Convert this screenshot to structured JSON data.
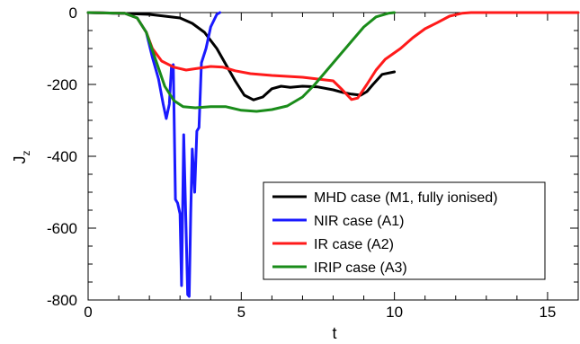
{
  "chart_data": {
    "type": "line",
    "xlabel": "t",
    "ylabel": "J",
    "ylabel_sub": "z",
    "xlim": [
      0,
      16
    ],
    "ylim": [
      -800,
      0
    ],
    "x_ticks": [
      0,
      5,
      10,
      15
    ],
    "y_ticks": [
      0,
      -200,
      -400,
      -600,
      -800
    ],
    "grid": false,
    "legend_position": "bottom-right",
    "series": [
      {
        "name": "MHD case (M1, fully ionised)",
        "color": "#000000",
        "points": [
          [
            0,
            0
          ],
          [
            1,
            -2
          ],
          [
            2,
            -5
          ],
          [
            2.5,
            -10
          ],
          [
            3,
            -15
          ],
          [
            3.4,
            -30
          ],
          [
            3.8,
            -55
          ],
          [
            4.2,
            -100
          ],
          [
            4.5,
            -145
          ],
          [
            4.8,
            -190
          ],
          [
            5.1,
            -230
          ],
          [
            5.4,
            -243
          ],
          [
            5.7,
            -235
          ],
          [
            6,
            -212
          ],
          [
            6.3,
            -205
          ],
          [
            6.6,
            -208
          ],
          [
            7,
            -205
          ],
          [
            7.5,
            -207
          ],
          [
            8,
            -215
          ],
          [
            8.3,
            -222
          ],
          [
            8.6,
            -227
          ],
          [
            8.9,
            -230
          ],
          [
            9.1,
            -220
          ],
          [
            9.3,
            -200
          ],
          [
            9.6,
            -172
          ],
          [
            10,
            -165
          ]
        ]
      },
      {
        "name": "NIR case (A1)",
        "color": "#1a1aff",
        "points": [
          [
            0,
            0
          ],
          [
            1.2,
            -2
          ],
          [
            1.6,
            -15
          ],
          [
            1.9,
            -55
          ],
          [
            2.1,
            -125
          ],
          [
            2.3,
            -185
          ],
          [
            2.45,
            -255
          ],
          [
            2.55,
            -295
          ],
          [
            2.65,
            -255
          ],
          [
            2.72,
            -150
          ],
          [
            2.78,
            -145
          ],
          [
            2.85,
            -520
          ],
          [
            2.92,
            -530
          ],
          [
            3.0,
            -560
          ],
          [
            3.05,
            -760
          ],
          [
            3.12,
            -340
          ],
          [
            3.2,
            -610
          ],
          [
            3.25,
            -785
          ],
          [
            3.3,
            -790
          ],
          [
            3.35,
            -560
          ],
          [
            3.4,
            -380
          ],
          [
            3.48,
            -500
          ],
          [
            3.55,
            -330
          ],
          [
            3.62,
            -320
          ],
          [
            3.7,
            -140
          ],
          [
            3.85,
            -100
          ],
          [
            4.0,
            -40
          ],
          [
            4.2,
            -5
          ],
          [
            4.3,
            0
          ]
        ]
      },
      {
        "name": "IR case (A2)",
        "color": "#ff1a1a",
        "points": [
          [
            0,
            0
          ],
          [
            1.2,
            -2
          ],
          [
            1.6,
            -15
          ],
          [
            1.9,
            -55
          ],
          [
            2.1,
            -100
          ],
          [
            2.4,
            -135
          ],
          [
            2.8,
            -152
          ],
          [
            3.2,
            -160
          ],
          [
            3.6,
            -155
          ],
          [
            4,
            -150
          ],
          [
            4.4,
            -152
          ],
          [
            4.8,
            -162
          ],
          [
            5.3,
            -170
          ],
          [
            6,
            -175
          ],
          [
            7,
            -180
          ],
          [
            7.5,
            -185
          ],
          [
            8,
            -190
          ],
          [
            8.3,
            -215
          ],
          [
            8.6,
            -242
          ],
          [
            8.8,
            -238
          ],
          [
            9.1,
            -200
          ],
          [
            9.4,
            -160
          ],
          [
            9.7,
            -130
          ],
          [
            10.2,
            -100
          ],
          [
            10.6,
            -70
          ],
          [
            11,
            -45
          ],
          [
            11.4,
            -28
          ],
          [
            11.8,
            -10
          ],
          [
            12.2,
            -2
          ],
          [
            12.5,
            0
          ],
          [
            16,
            0
          ]
        ]
      },
      {
        "name": "IRIP case (A3)",
        "color": "#1a8c1a",
        "points": [
          [
            0,
            0
          ],
          [
            1.2,
            -2
          ],
          [
            1.6,
            -15
          ],
          [
            1.9,
            -55
          ],
          [
            2.2,
            -130
          ],
          [
            2.5,
            -205
          ],
          [
            2.8,
            -245
          ],
          [
            3.1,
            -262
          ],
          [
            3.5,
            -265
          ],
          [
            4,
            -262
          ],
          [
            4.5,
            -262
          ],
          [
            5,
            -272
          ],
          [
            5.5,
            -275
          ],
          [
            6,
            -270
          ],
          [
            6.5,
            -260
          ],
          [
            7,
            -235
          ],
          [
            7.4,
            -200
          ],
          [
            7.8,
            -160
          ],
          [
            8.2,
            -120
          ],
          [
            8.6,
            -80
          ],
          [
            9,
            -40
          ],
          [
            9.4,
            -12
          ],
          [
            9.8,
            -2
          ],
          [
            10,
            0
          ]
        ]
      }
    ]
  }
}
